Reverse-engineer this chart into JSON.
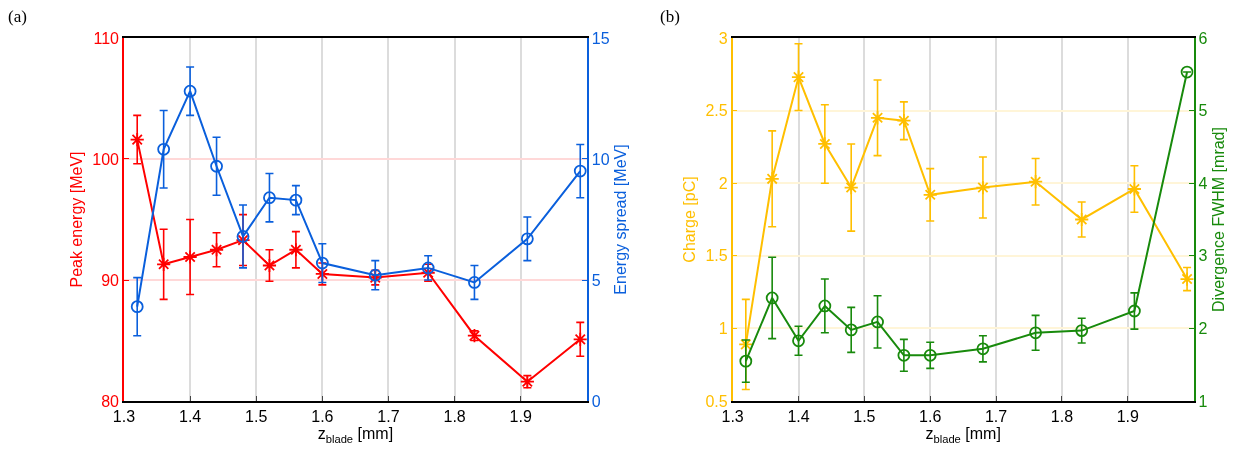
{
  "chart_data": [
    {
      "type": "line",
      "annotations": [
        "(a)"
      ],
      "xlabel": "z$_{blade}$ [mm]",
      "ylabel": "Peak energy [MeV]",
      "y2label": "Energy spread [MeV]",
      "x": [
        1.32,
        1.36,
        1.4,
        1.44,
        1.48,
        1.52,
        1.56,
        1.6,
        1.68,
        1.76,
        1.83,
        1.91,
        1.99
      ],
      "xlim": [
        1.3,
        2.0
      ],
      "xticks": [
        1.3,
        1.4,
        1.5,
        1.6,
        1.7,
        1.8,
        1.9
      ],
      "ylim": [
        80,
        110
      ],
      "yticks": [
        80,
        90,
        100,
        110
      ],
      "y2lim": [
        0,
        15
      ],
      "y2ticks": [
        0,
        5,
        10,
        15
      ],
      "grid": true,
      "series": [
        {
          "color": "#ff0000",
          "marker": "cross",
          "values": [
            101.6,
            91.3,
            91.9,
            92.5,
            93.3,
            91.2,
            92.5,
            90.5,
            90.2,
            90.6,
            85.4,
            81.6,
            85.1
          ],
          "errors": [
            2.0,
            2.9,
            3.1,
            1.4,
            2.1,
            1.3,
            1.5,
            0.9,
            0.6,
            0.7,
            0.4,
            0.5,
            1.4
          ]
        },
        {
          "color": "#0a5fdc",
          "marker": "circle",
          "axis": "y2",
          "values": [
            3.9,
            10.4,
            12.8,
            9.7,
            6.8,
            8.4,
            8.3,
            5.7,
            5.2,
            5.5,
            4.9,
            6.7,
            9.5
          ],
          "errors": [
            1.2,
            1.6,
            1.0,
            1.2,
            1.3,
            1.0,
            0.6,
            0.8,
            0.6,
            0.5,
            0.7,
            0.9,
            1.1
          ]
        }
      ]
    },
    {
      "type": "line",
      "annotations": [
        "(b)"
      ],
      "xlabel": "z$_{blade}$ [mm]",
      "ylabel": "Charge [pC]",
      "y2label": "Divergence FWHM [mrad]",
      "x": [
        1.32,
        1.36,
        1.4,
        1.44,
        1.48,
        1.52,
        1.56,
        1.6,
        1.68,
        1.76,
        1.83,
        1.91,
        1.99
      ],
      "xlim": [
        1.3,
        2.0
      ],
      "xticks": [
        1.3,
        1.4,
        1.5,
        1.6,
        1.7,
        1.8,
        1.9
      ],
      "ylim": [
        0.5,
        3
      ],
      "yticks": [
        0.5,
        1,
        1.5,
        2,
        2.5,
        3
      ],
      "y2lim": [
        1,
        6
      ],
      "y2ticks": [
        1,
        2,
        3,
        4,
        5,
        6
      ],
      "grid": true,
      "series": [
        {
          "color": "#ffbf00",
          "marker": "cross",
          "values": [
            0.89,
            2.03,
            2.73,
            2.27,
            1.97,
            2.45,
            2.43,
            1.92,
            1.97,
            2.01,
            1.75,
            1.96,
            1.34
          ],
          "errors": [
            0.31,
            0.33,
            0.23,
            0.27,
            0.3,
            0.26,
            0.13,
            0.18,
            0.21,
            0.16,
            0.12,
            0.16,
            0.08
          ]
        },
        {
          "color": "#188a0c",
          "marker": "circle",
          "axis": "y2",
          "values": [
            1.55,
            2.42,
            1.83,
            2.31,
            1.98,
            2.09,
            1.63,
            1.63,
            1.72,
            1.94,
            1.97,
            2.24,
            5.53
          ],
          "errors": [
            0.29,
            0.56,
            0.2,
            0.37,
            0.31,
            0.36,
            0.22,
            0.18,
            0.18,
            0.24,
            0.17,
            0.25,
            null
          ]
        }
      ]
    }
  ]
}
